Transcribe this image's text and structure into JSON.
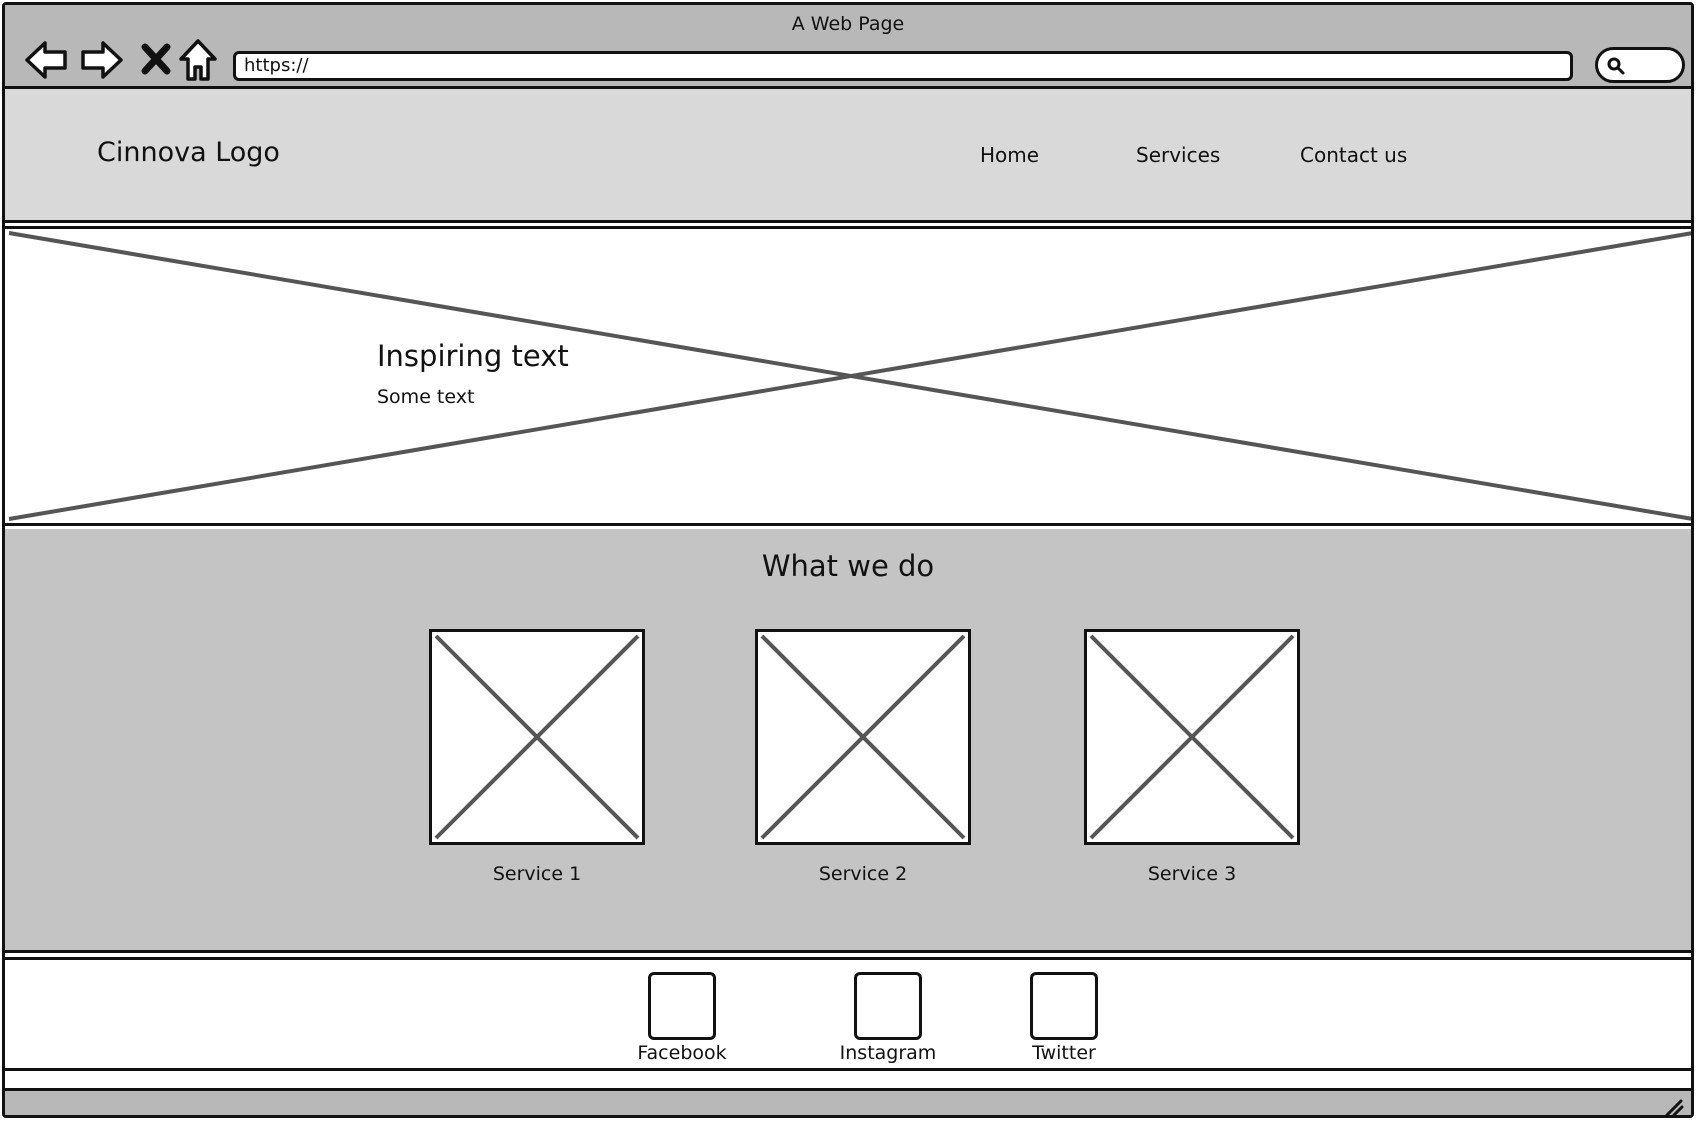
{
  "browser": {
    "title": "A Web Page",
    "url": "https://",
    "icons": [
      "back-arrow-icon",
      "forward-arrow-icon",
      "close-x-icon",
      "home-icon",
      "search-icon"
    ]
  },
  "header": {
    "logo": "Cinnova Logo",
    "nav": [
      {
        "label": "Home"
      },
      {
        "label": "Services"
      },
      {
        "label": "Contact us"
      }
    ]
  },
  "hero": {
    "title": "Inspiring text",
    "subtitle": "Some text"
  },
  "services": {
    "title": "What we do",
    "items": [
      {
        "label": "Service 1"
      },
      {
        "label": "Service 2"
      },
      {
        "label": "Service 3"
      }
    ]
  },
  "footer": {
    "social": [
      {
        "label": "Facebook"
      },
      {
        "label": "Instagram"
      },
      {
        "label": "Twitter"
      }
    ]
  },
  "colors": {
    "chrome": "#b8b8b8",
    "header": "#d9d9d9",
    "services_bg": "#c4c4c4",
    "stroke": "#111111",
    "placeholder_x": "#555555"
  }
}
